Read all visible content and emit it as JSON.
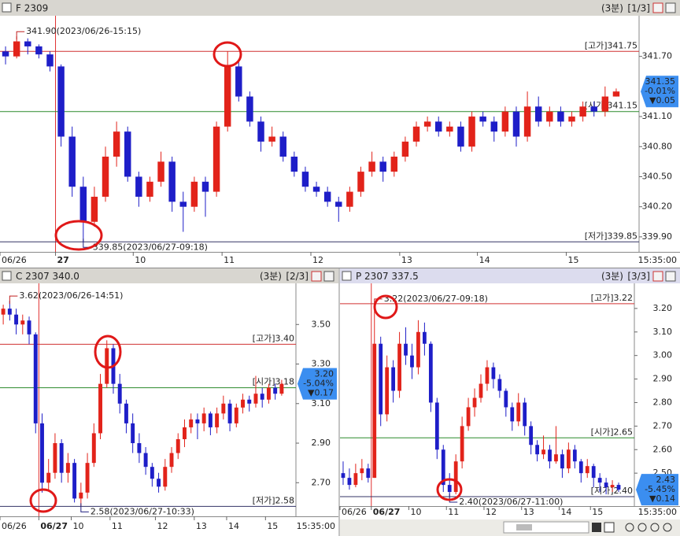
{
  "chart_data": [
    {
      "type": "candlestick",
      "title": "F 2309",
      "interval": "(3분)",
      "page": "[1/3]",
      "cursor_time": "15:35:00",
      "up_color": "#e2231a",
      "down_color": "#1e1ec8",
      "ylim": [
        339.75,
        342.09
      ],
      "yticks": [
        {
          "value": 341.7,
          "label": "341.70"
        },
        {
          "value": 341.1,
          "label": "341.10"
        },
        {
          "value": 340.8,
          "label": "340.80"
        },
        {
          "value": 340.5,
          "label": "340.50"
        },
        {
          "value": 340.2,
          "label": "340.20"
        },
        {
          "value": 339.9,
          "label": "339.90"
        }
      ],
      "xticks": [
        {
          "value": 0,
          "label": "06/26"
        },
        {
          "value": 5,
          "label": "27"
        },
        {
          "value": 12,
          "label": "10"
        },
        {
          "value": 20,
          "label": "11"
        },
        {
          "value": 28,
          "label": "12"
        },
        {
          "value": 36,
          "label": "13"
        },
        {
          "value": 43,
          "label": "14"
        },
        {
          "value": 51,
          "label": "15"
        }
      ],
      "ref_lines": [
        {
          "value": 341.75,
          "label": "[고가]341.75",
          "color": "#d03030"
        },
        {
          "value": 341.15,
          "label": "[시가]341.15",
          "color": "#2a8a2a"
        },
        {
          "value": 339.85,
          "label": "[저가]339.85",
          "color": "#333366"
        }
      ],
      "high_note": {
        "value": 341.9,
        "label": "341.90(2023/06/26-15:15)"
      },
      "low_note": {
        "value": 339.85,
        "label": "339.85(2023/06/27-09:18)"
      },
      "price_box": {
        "price": 341.35,
        "change_pct": "-0.01%",
        "change": "▼0.05"
      },
      "ohlc": [
        [
          341.75,
          341.8,
          341.62,
          341.7
        ],
        [
          341.7,
          341.9,
          341.68,
          341.85
        ],
        [
          341.85,
          341.88,
          341.72,
          341.8
        ],
        [
          341.8,
          341.82,
          341.68,
          341.72
        ],
        [
          341.72,
          341.75,
          341.55,
          341.6
        ],
        [
          341.6,
          341.62,
          340.8,
          340.9
        ],
        [
          340.9,
          341.0,
          340.3,
          340.4
        ],
        [
          340.4,
          340.5,
          339.85,
          340.05
        ],
        [
          340.05,
          340.4,
          340.0,
          340.3
        ],
        [
          340.3,
          340.8,
          340.25,
          340.7
        ],
        [
          340.7,
          341.05,
          340.6,
          340.95
        ],
        [
          340.95,
          341.0,
          340.45,
          340.5
        ],
        [
          340.5,
          340.55,
          340.2,
          340.3
        ],
        [
          340.3,
          340.5,
          340.25,
          340.45
        ],
        [
          340.45,
          340.75,
          340.4,
          340.65
        ],
        [
          340.65,
          340.7,
          340.15,
          340.25
        ],
        [
          340.25,
          340.35,
          339.95,
          340.2
        ],
        [
          340.2,
          340.5,
          340.15,
          340.45
        ],
        [
          340.45,
          340.5,
          340.1,
          340.35
        ],
        [
          340.35,
          341.05,
          340.3,
          341.0
        ],
        [
          341.0,
          341.75,
          340.95,
          341.6
        ],
        [
          341.6,
          341.65,
          341.25,
          341.3
        ],
        [
          341.3,
          341.35,
          341.0,
          341.05
        ],
        [
          341.05,
          341.1,
          340.75,
          340.85
        ],
        [
          340.85,
          341.0,
          340.8,
          340.9
        ],
        [
          340.9,
          340.95,
          340.65,
          340.7
        ],
        [
          340.7,
          340.75,
          340.5,
          340.55
        ],
        [
          340.55,
          340.6,
          340.35,
          340.4
        ],
        [
          340.4,
          340.45,
          340.3,
          340.35
        ],
        [
          340.35,
          340.4,
          340.2,
          340.25
        ],
        [
          340.25,
          340.3,
          340.05,
          340.2
        ],
        [
          340.2,
          340.4,
          340.15,
          340.35
        ],
        [
          340.35,
          340.6,
          340.3,
          340.55
        ],
        [
          340.55,
          340.75,
          340.5,
          340.65
        ],
        [
          340.65,
          340.7,
          340.45,
          340.55
        ],
        [
          340.55,
          340.75,
          340.5,
          340.7
        ],
        [
          340.7,
          340.9,
          340.65,
          340.85
        ],
        [
          340.85,
          341.05,
          340.8,
          341.0
        ],
        [
          341.0,
          341.1,
          340.95,
          341.05
        ],
        [
          341.05,
          341.1,
          340.9,
          340.95
        ],
        [
          340.95,
          341.05,
          340.9,
          341.0
        ],
        [
          341.0,
          341.05,
          340.75,
          340.8
        ],
        [
          340.8,
          341.15,
          340.75,
          341.1
        ],
        [
          341.1,
          341.15,
          341.0,
          341.05
        ],
        [
          341.05,
          341.1,
          340.85,
          340.95
        ],
        [
          340.95,
          341.2,
          340.9,
          341.15
        ],
        [
          341.15,
          341.2,
          340.8,
          340.9
        ],
        [
          340.9,
          341.35,
          340.85,
          341.2
        ],
        [
          341.2,
          341.3,
          341.0,
          341.05
        ],
        [
          341.05,
          341.2,
          341.0,
          341.15
        ],
        [
          341.15,
          341.2,
          341.0,
          341.05
        ],
        [
          341.05,
          341.15,
          341.0,
          341.1
        ],
        [
          341.1,
          341.25,
          341.05,
          341.2
        ],
        [
          341.2,
          341.25,
          341.1,
          341.15
        ],
        [
          341.15,
          341.4,
          341.1,
          341.3
        ],
        [
          341.3,
          341.38,
          341.3,
          341.35
        ]
      ]
    },
    {
      "type": "candlestick",
      "title": "C 2307 340.0",
      "interval": "(3분)",
      "page": "[2/3]",
      "cursor_time": "15:35:00",
      "up_color": "#e2231a",
      "down_color": "#1e1ec8",
      "ylim": [
        2.53,
        3.7
      ],
      "yticks": [
        {
          "value": 3.5,
          "label": "3.50"
        },
        {
          "value": 3.3,
          "label": "3.30"
        },
        {
          "value": 3.1,
          "label": "3.10"
        },
        {
          "value": 2.9,
          "label": "2.90"
        },
        {
          "value": 2.7,
          "label": "2.70"
        }
      ],
      "xticks": [
        {
          "value": 0,
          "label": "06/26"
        },
        {
          "value": 6,
          "label": "06/27"
        },
        {
          "value": 11,
          "label": "10"
        },
        {
          "value": 17,
          "label": "11"
        },
        {
          "value": 24,
          "label": "12"
        },
        {
          "value": 30,
          "label": "13"
        },
        {
          "value": 35,
          "label": "14"
        },
        {
          "value": 41,
          "label": "15"
        }
      ],
      "ref_lines": [
        {
          "value": 3.4,
          "label": "[고가]3.40",
          "color": "#d03030"
        },
        {
          "value": 3.18,
          "label": "[시가]3.18",
          "color": "#2a8a2a"
        },
        {
          "value": 2.58,
          "label": "[저가]2.58",
          "color": "#333366"
        }
      ],
      "high_note": {
        "value": 3.62,
        "label": "3.62(2023/06/26-14:51)"
      },
      "low_note": {
        "value": 2.58,
        "label": "2.58(2023/06/27-10:33)"
      },
      "price_box": {
        "price": {
          "value": 3.2,
          "label": "3.20"
        },
        "change_pct": "-5.04%",
        "change": "▼0.17"
      },
      "ohlc": [
        [
          3.55,
          3.6,
          3.5,
          3.58
        ],
        [
          3.58,
          3.62,
          3.52,
          3.55
        ],
        [
          3.55,
          3.58,
          3.45,
          3.5
        ],
        [
          3.5,
          3.55,
          3.45,
          3.52
        ],
        [
          3.52,
          3.54,
          3.4,
          3.45
        ],
        [
          3.45,
          3.46,
          2.95,
          3.0
        ],
        [
          3.0,
          3.05,
          2.65,
          2.7
        ],
        [
          2.7,
          2.82,
          2.66,
          2.75
        ],
        [
          2.75,
          2.95,
          2.72,
          2.9
        ],
        [
          2.9,
          2.92,
          2.7,
          2.75
        ],
        [
          2.75,
          2.85,
          2.7,
          2.8
        ],
        [
          2.8,
          2.82,
          2.6,
          2.62
        ],
        [
          2.62,
          2.7,
          2.58,
          2.65
        ],
        [
          2.65,
          2.85,
          2.62,
          2.8
        ],
        [
          2.8,
          3.0,
          2.78,
          2.95
        ],
        [
          2.95,
          3.25,
          2.92,
          3.2
        ],
        [
          3.2,
          3.42,
          3.18,
          3.38
        ],
        [
          3.38,
          3.4,
          3.15,
          3.2
        ],
        [
          3.2,
          3.25,
          3.05,
          3.1
        ],
        [
          3.1,
          3.12,
          2.95,
          3.0
        ],
        [
          3.0,
          3.05,
          2.85,
          2.9
        ],
        [
          2.9,
          2.95,
          2.8,
          2.85
        ],
        [
          2.85,
          2.88,
          2.74,
          2.78
        ],
        [
          2.78,
          2.8,
          2.68,
          2.72
        ],
        [
          2.72,
          2.75,
          2.65,
          2.68
        ],
        [
          2.68,
          2.82,
          2.66,
          2.78
        ],
        [
          2.78,
          2.88,
          2.75,
          2.85
        ],
        [
          2.85,
          2.95,
          2.82,
          2.92
        ],
        [
          2.92,
          3.02,
          2.88,
          2.98
        ],
        [
          2.98,
          3.05,
          2.95,
          3.02
        ],
        [
          3.02,
          3.05,
          2.92,
          3.0
        ],
        [
          3.0,
          3.08,
          2.96,
          3.05
        ],
        [
          3.05,
          3.06,
          2.94,
          2.98
        ],
        [
          2.98,
          3.08,
          2.95,
          3.05
        ],
        [
          3.05,
          3.14,
          3.02,
          3.1
        ],
        [
          3.1,
          3.12,
          2.96,
          3.0
        ],
        [
          3.0,
          3.1,
          2.98,
          3.08
        ],
        [
          3.08,
          3.15,
          3.05,
          3.12
        ],
        [
          3.12,
          3.14,
          3.06,
          3.1
        ],
        [
          3.1,
          3.24,
          3.08,
          3.15
        ],
        [
          3.15,
          3.18,
          3.08,
          3.12
        ],
        [
          3.12,
          3.2,
          3.1,
          3.18
        ],
        [
          3.18,
          3.2,
          3.12,
          3.15
        ],
        [
          3.15,
          3.22,
          3.14,
          3.2
        ]
      ]
    },
    {
      "type": "candlestick",
      "title": "P 2307 337.5",
      "interval": "(3분)",
      "page": "[3/3]",
      "cursor_time": "15:35:00",
      "up_color": "#e2231a",
      "down_color": "#1e1ec8",
      "ylim": [
        2.36,
        3.3
      ],
      "yticks": [
        {
          "value": 3.2,
          "label": "3.20"
        },
        {
          "value": 3.1,
          "label": "3.10"
        },
        {
          "value": 3.0,
          "label": "3.00"
        },
        {
          "value": 2.9,
          "label": "2.90"
        },
        {
          "value": 2.8,
          "label": "2.80"
        },
        {
          "value": 2.7,
          "label": "2.70"
        },
        {
          "value": 2.6,
          "label": "2.60"
        },
        {
          "value": 2.5,
          "label": "2.50"
        }
      ],
      "xticks": [
        {
          "value": 0,
          "label": "06/26"
        },
        {
          "value": 5,
          "label": "06/27"
        },
        {
          "value": 11,
          "label": "10"
        },
        {
          "value": 17,
          "label": "11"
        },
        {
          "value": 23,
          "label": "12"
        },
        {
          "value": 29,
          "label": "13"
        },
        {
          "value": 35,
          "label": "14"
        },
        {
          "value": 40,
          "label": "15"
        }
      ],
      "ref_lines": [
        {
          "value": 3.22,
          "label": "[고가]3.22",
          "color": "#d03030"
        },
        {
          "value": 2.65,
          "label": "[시가]2.65",
          "color": "#2a8a2a"
        },
        {
          "value": 2.4,
          "label": "[저가]2.40",
          "color": "#333366"
        }
      ],
      "high_note": {
        "value": 3.22,
        "label": "3.22(2023/06/27-09:18)"
      },
      "low_note": {
        "value": 2.4,
        "label": "2.40(2023/06/27-11:00)"
      },
      "price_box": {
        "price": 2.43,
        "change_pct": "-5.45%",
        "change": "▼0.14"
      },
      "ohlc": [
        [
          2.5,
          2.55,
          2.45,
          2.48
        ],
        [
          2.48,
          2.52,
          2.43,
          2.45
        ],
        [
          2.45,
          2.54,
          2.44,
          2.5
        ],
        [
          2.5,
          2.56,
          2.47,
          2.52
        ],
        [
          2.52,
          2.54,
          2.46,
          2.48
        ],
        [
          2.48,
          3.22,
          2.48,
          3.05
        ],
        [
          3.05,
          3.08,
          2.7,
          2.75
        ],
        [
          2.75,
          3.0,
          2.72,
          2.95
        ],
        [
          2.95,
          2.98,
          2.8,
          2.85
        ],
        [
          2.85,
          3.1,
          2.82,
          3.05
        ],
        [
          3.05,
          3.12,
          2.96,
          3.0
        ],
        [
          3.0,
          3.05,
          2.9,
          2.95
        ],
        [
          2.95,
          3.15,
          2.92,
          3.1
        ],
        [
          3.1,
          3.14,
          3.0,
          3.05
        ],
        [
          3.05,
          3.06,
          2.76,
          2.8
        ],
        [
          2.8,
          2.82,
          2.56,
          2.6
        ],
        [
          2.6,
          2.62,
          2.42,
          2.45
        ],
        [
          2.45,
          2.5,
          2.4,
          2.42
        ],
        [
          2.42,
          2.58,
          2.41,
          2.55
        ],
        [
          2.55,
          2.74,
          2.52,
          2.7
        ],
        [
          2.7,
          2.82,
          2.68,
          2.78
        ],
        [
          2.78,
          2.86,
          2.74,
          2.82
        ],
        [
          2.82,
          2.92,
          2.8,
          2.88
        ],
        [
          2.88,
          2.98,
          2.85,
          2.95
        ],
        [
          2.95,
          2.97,
          2.86,
          2.9
        ],
        [
          2.9,
          2.92,
          2.82,
          2.85
        ],
        [
          2.85,
          2.86,
          2.74,
          2.78
        ],
        [
          2.78,
          2.8,
          2.68,
          2.72
        ],
        [
          2.72,
          2.84,
          2.7,
          2.8
        ],
        [
          2.8,
          2.82,
          2.66,
          2.7
        ],
        [
          2.7,
          2.72,
          2.58,
          2.62
        ],
        [
          2.62,
          2.64,
          2.55,
          2.58
        ],
        [
          2.58,
          2.66,
          2.56,
          2.6
        ],
        [
          2.6,
          2.62,
          2.52,
          2.55
        ],
        [
          2.55,
          2.7,
          2.54,
          2.58
        ],
        [
          2.58,
          2.6,
          2.48,
          2.52
        ],
        [
          2.52,
          2.63,
          2.5,
          2.6
        ],
        [
          2.6,
          2.62,
          2.52,
          2.55
        ],
        [
          2.55,
          2.56,
          2.46,
          2.5
        ],
        [
          2.5,
          2.56,
          2.48,
          2.53
        ],
        [
          2.53,
          2.54,
          2.44,
          2.48
        ],
        [
          2.48,
          2.5,
          2.42,
          2.46
        ],
        [
          2.46,
          2.48,
          2.41,
          2.44
        ],
        [
          2.44,
          2.47,
          2.42,
          2.45
        ],
        [
          2.45,
          2.46,
          2.42,
          2.43
        ]
      ]
    }
  ]
}
